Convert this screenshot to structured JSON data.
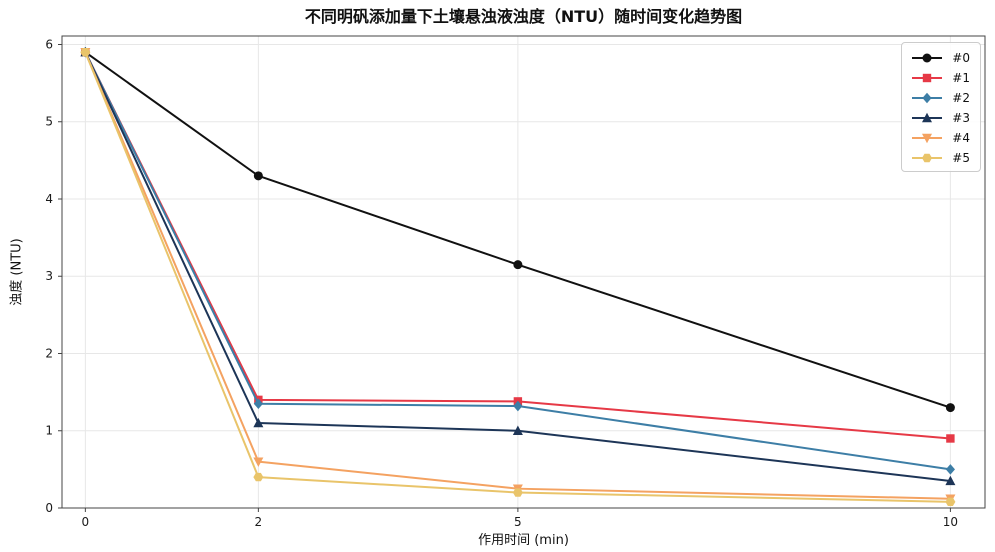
{
  "colors": {
    "background": "#ffffff",
    "grid": "#e7e7e7",
    "spine": "#444444",
    "tick_label": "#1a1a1a",
    "legend_border": "#cccccc"
  },
  "chart_data": {
    "type": "line",
    "title": "不同明矾添加量下土壤悬浊液浊度（NTU）随时间变化趋势图",
    "xlabel": "作用时间 (min)",
    "ylabel": "浊度 (NTU)",
    "x": [
      0,
      2,
      5,
      10
    ],
    "xtick_labels": [
      "0",
      "2",
      "5",
      "10"
    ],
    "yticks": [
      0,
      1,
      2,
      3,
      4,
      5,
      6
    ],
    "ytick_labels": [
      "0",
      "1",
      "2",
      "3",
      "4",
      "5",
      "6"
    ],
    "xlim": [
      -0.27,
      10.4
    ],
    "ylim": [
      0,
      6.11
    ],
    "grid": true,
    "legend_position": "upper-right",
    "series": [
      {
        "name": "#0",
        "color": "#111111",
        "marker": "circle",
        "values": [
          5.9,
          4.3,
          3.15,
          1.3
        ]
      },
      {
        "name": "#1",
        "color": "#e63946",
        "marker": "square",
        "values": [
          5.9,
          1.4,
          1.38,
          0.9
        ]
      },
      {
        "name": "#2",
        "color": "#3d7ea6",
        "marker": "diamond",
        "values": [
          5.9,
          1.35,
          1.32,
          0.5
        ]
      },
      {
        "name": "#3",
        "color": "#1d3557",
        "marker": "triangle-up",
        "values": [
          5.9,
          1.1,
          1.0,
          0.35
        ]
      },
      {
        "name": "#4",
        "color": "#f4a261",
        "marker": "triangle-down",
        "values": [
          5.9,
          0.6,
          0.25,
          0.12
        ]
      },
      {
        "name": "#5",
        "color": "#e9c46a",
        "marker": "hexagon",
        "values": [
          5.9,
          0.4,
          0.2,
          0.08
        ]
      }
    ]
  }
}
